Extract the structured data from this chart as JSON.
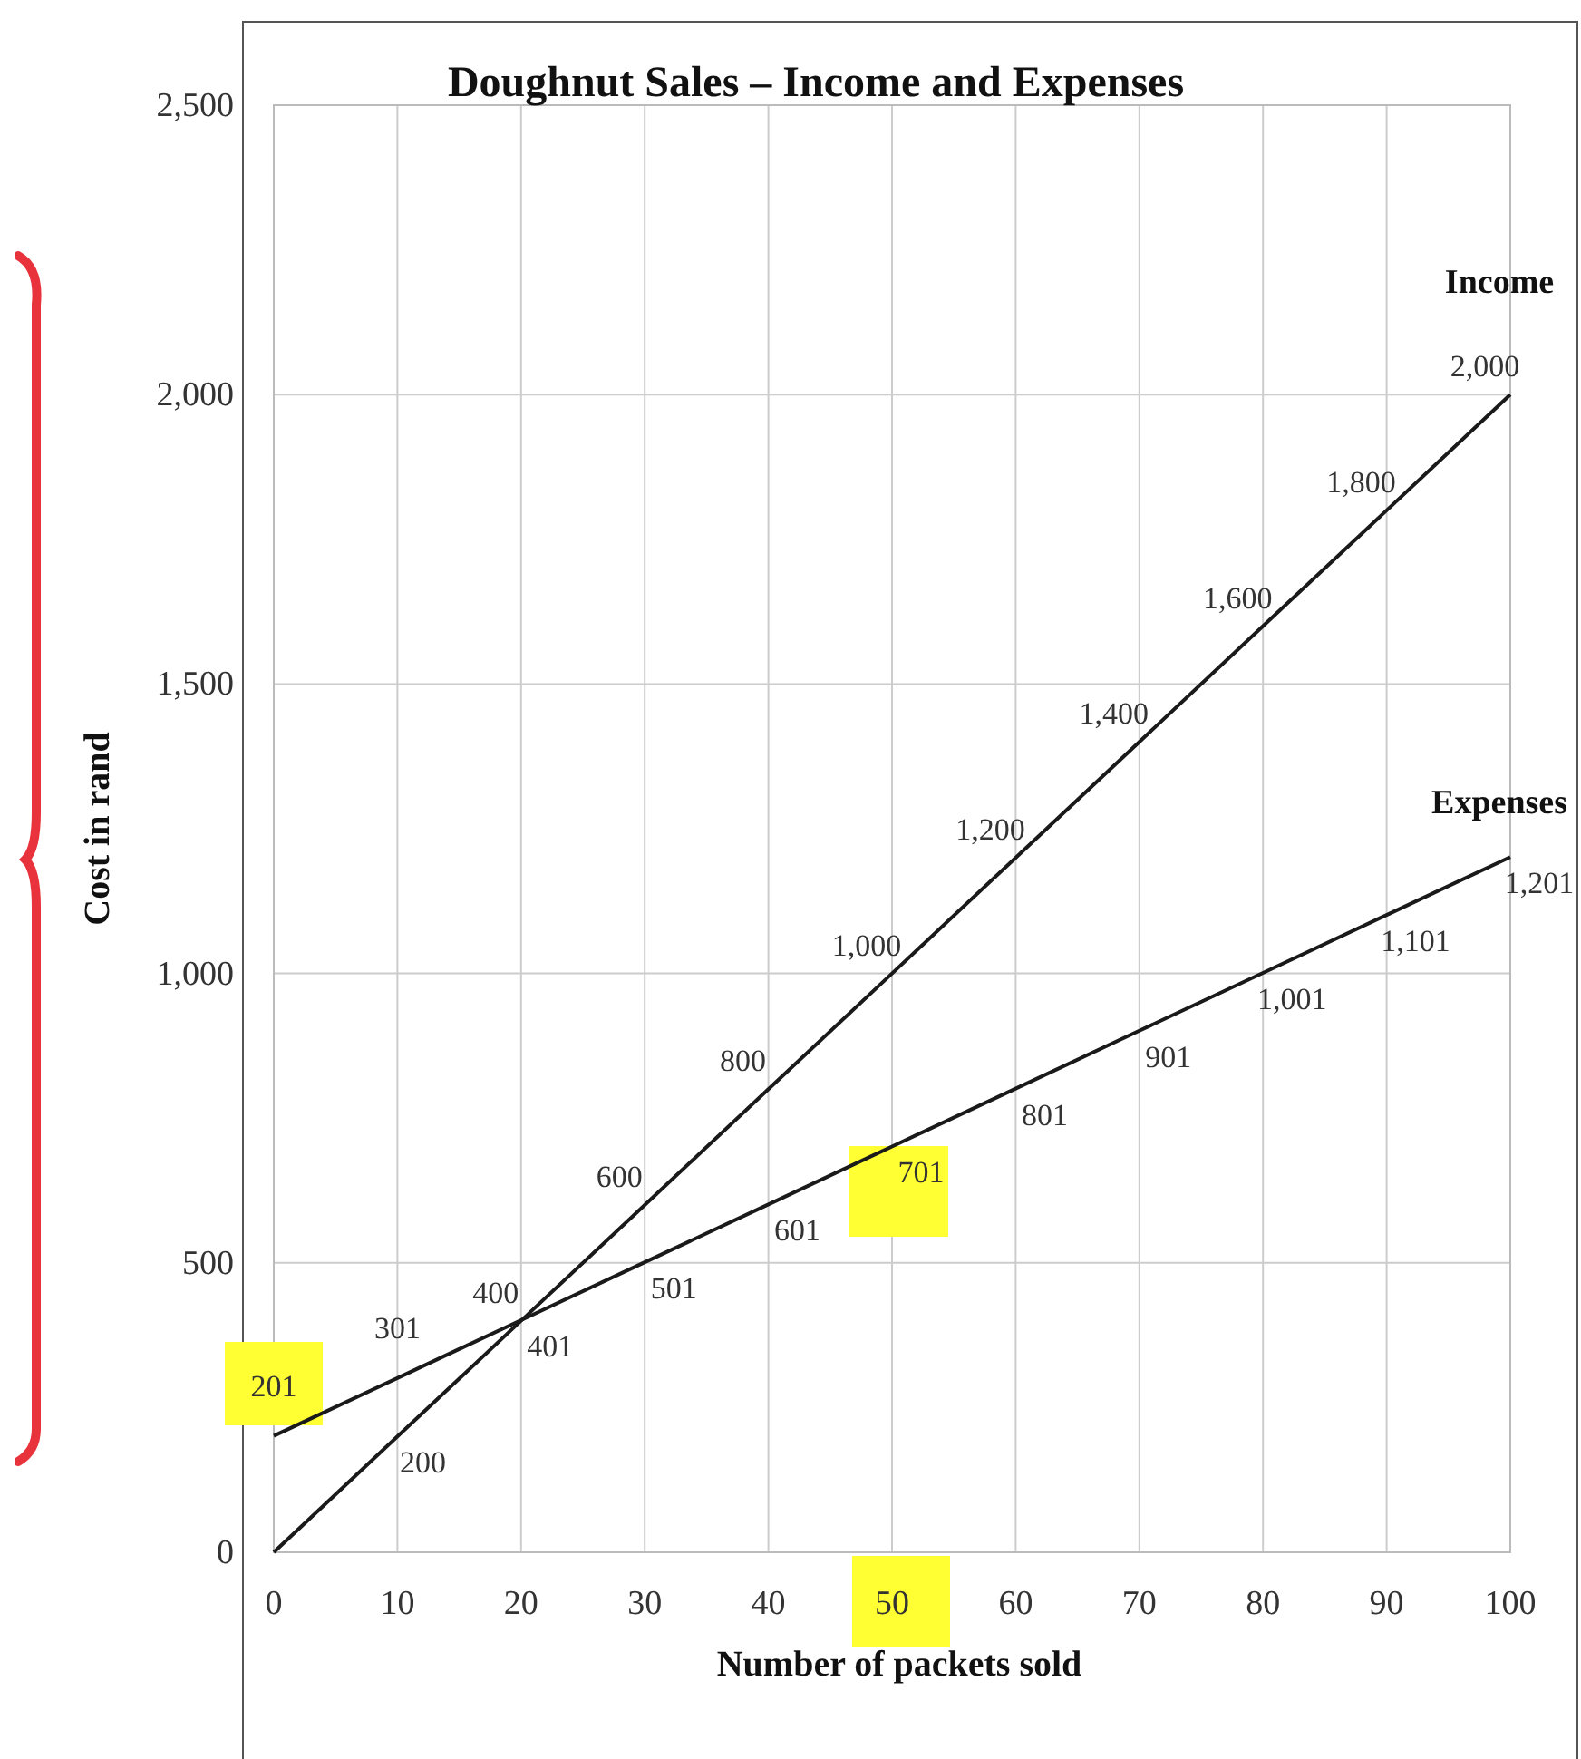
{
  "chart_data": {
    "type": "line",
    "title": "Doughnut Sales – Income and Expenses",
    "xlabel": "Number of packets sold",
    "ylabel": "Cost in rand",
    "x": [
      0,
      10,
      20,
      30,
      40,
      50,
      60,
      70,
      80,
      90,
      100
    ],
    "series": [
      {
        "name": "Income",
        "color": "#1a1a1a",
        "values": [
          0,
          200,
          400,
          600,
          800,
          1000,
          1200,
          1400,
          1600,
          1800,
          2000
        ],
        "value_labels": [
          null,
          "200",
          "400",
          "600",
          "800",
          "1,000",
          "1,200",
          "1,400",
          "1,600",
          "1,800",
          "2,000"
        ]
      },
      {
        "name": "Expenses",
        "color": "#1a1a1a",
        "values": [
          201,
          301,
          401,
          501,
          601,
          701,
          801,
          901,
          1001,
          1101,
          1201
        ],
        "value_labels": [
          "201",
          "301",
          "401",
          "501",
          "601",
          "701",
          "801",
          "901",
          "1,001",
          "1,101",
          "1,201"
        ]
      }
    ],
    "xlim": [
      0,
      100
    ],
    "xticks": [
      0,
      10,
      20,
      30,
      40,
      50,
      60,
      70,
      80,
      90,
      100
    ],
    "ylim": [
      0,
      2500
    ],
    "yticks": [
      0,
      {
        "value": 500,
        "label": "500"
      },
      {
        "value": 1000,
        "label": "1,000"
      },
      {
        "value": 1500,
        "label": "1,500"
      },
      {
        "value": 2000,
        "label": "2,000"
      },
      {
        "value": 2500,
        "label": "2,500"
      }
    ],
    "grid": true,
    "marker": "none",
    "line_style": "solid"
  }
}
